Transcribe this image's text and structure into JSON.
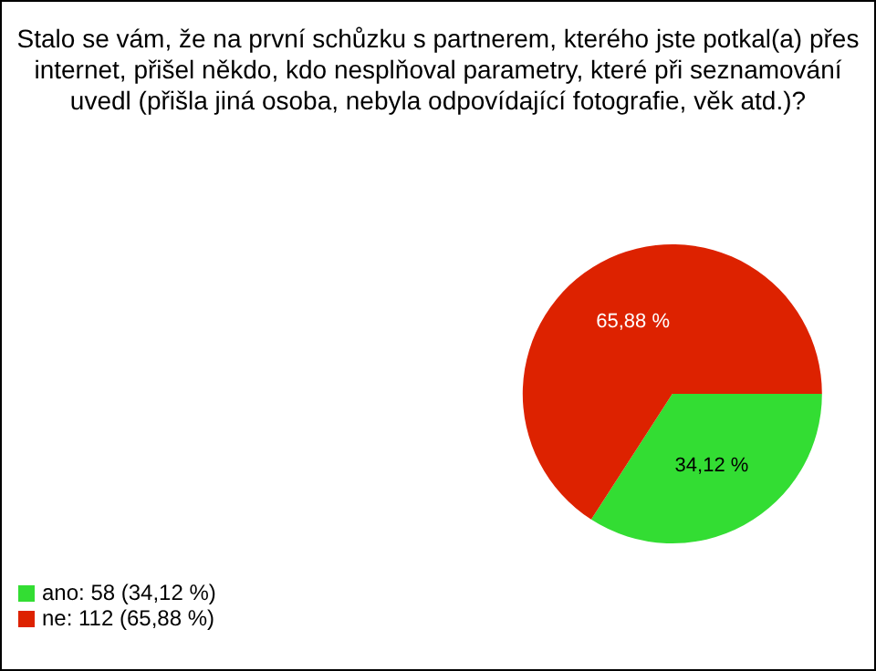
{
  "chart_data": {
    "type": "pie",
    "title": "Stalo se vám, že na první schůzku s partnerem, kterého jste potkal(a) přes internet, přišel někdo, kdo nesplňoval parametry, které při seznamování uvedl (přišla jiná osoba, nebyla odpovídající fotografie, věk atd.)?",
    "categories": [
      "ano: 58 (34,12 %)",
      "ne: 112 (65,88 %)"
    ],
    "values": [
      34.12,
      65.88
    ],
    "colors": [
      "#33dd33",
      "#dd2200"
    ],
    "value_labels": [
      "34,12 %",
      "65,88 %"
    ],
    "legend": "bottom left"
  }
}
